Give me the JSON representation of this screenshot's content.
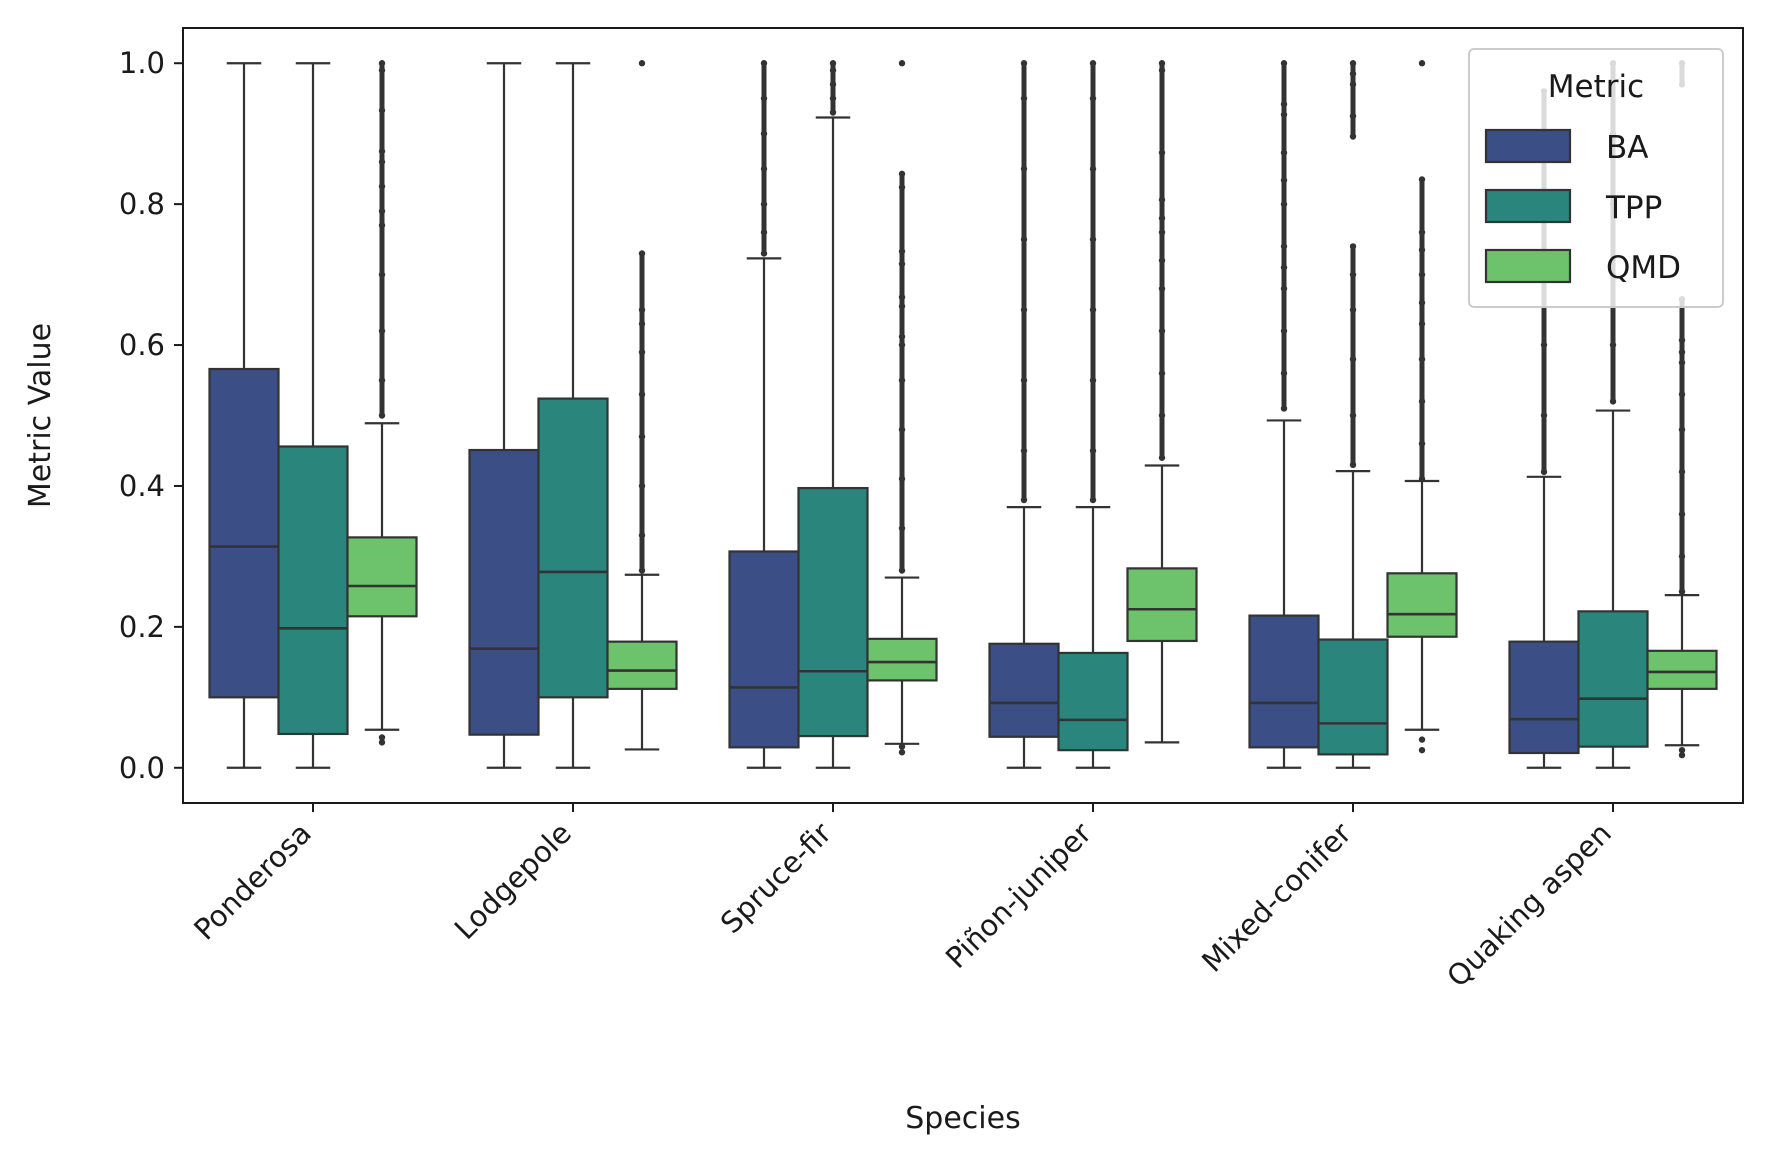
{
  "chart_data": {
    "type": "box",
    "xlabel": "Species",
    "ylabel": "Metric Value",
    "ylim": [
      -0.05,
      1.05
    ],
    "yticks": [
      "0.0",
      "0.2",
      "0.4",
      "0.6",
      "0.8",
      "1.0"
    ],
    "categories": [
      "Ponderosa",
      "Lodgepole",
      "Spruce-fir",
      "Piñon-juniper",
      "Mixed-conifer",
      "Quaking aspen"
    ],
    "grid": false,
    "legend": {
      "title": "Metric",
      "position": "top-right"
    },
    "series": [
      {
        "name": "BA",
        "color": "#3b4f86",
        "boxes": [
          {
            "whisker_low": 0.0,
            "q1": 0.1,
            "median": 0.314,
            "q3": 0.566,
            "whisker_high": 1.0,
            "outliers": []
          },
          {
            "whisker_low": 0.0,
            "q1": 0.047,
            "median": 0.169,
            "q3": 0.451,
            "whisker_high": 1.0,
            "outliers": []
          },
          {
            "whisker_low": 0.0,
            "q1": 0.029,
            "median": 0.114,
            "q3": 0.307,
            "whisker_high": 0.723,
            "outliers": [
              0.73,
              0.76,
              0.8,
              0.85,
              0.9,
              0.95,
              1.0
            ]
          },
          {
            "whisker_low": 0.0,
            "q1": 0.044,
            "median": 0.092,
            "q3": 0.176,
            "whisker_high": 0.37,
            "outliers": [
              0.38,
              0.45,
              0.55,
              0.65,
              0.75,
              0.85,
              0.95,
              1.0
            ]
          },
          {
            "whisker_low": 0.0,
            "q1": 0.029,
            "median": 0.092,
            "q3": 0.216,
            "whisker_high": 0.493,
            "outliers": [
              0.51,
              0.56,
              0.62,
              0.68,
              0.71,
              0.74,
              0.8,
              0.834,
              0.873,
              0.927,
              0.942,
              1.0
            ]
          },
          {
            "whisker_low": 0.0,
            "q1": 0.021,
            "median": 0.069,
            "q3": 0.179,
            "whisker_high": 0.413,
            "outliers": [
              0.42,
              0.5,
              0.6,
              0.7,
              0.8,
              0.9,
              0.96
            ]
          }
        ]
      },
      {
        "name": "TPP",
        "color": "#2a857d",
        "boxes": [
          {
            "whisker_low": 0.0,
            "q1": 0.048,
            "median": 0.198,
            "q3": 0.456,
            "whisker_high": 1.0,
            "outliers": []
          },
          {
            "whisker_low": 0.0,
            "q1": 0.1,
            "median": 0.278,
            "q3": 0.524,
            "whisker_high": 1.0,
            "outliers": []
          },
          {
            "whisker_low": 0.0,
            "q1": 0.045,
            "median": 0.137,
            "q3": 0.397,
            "whisker_high": 0.923,
            "outliers": [
              0.93,
              0.95,
              0.97,
              0.99,
              1.0
            ]
          },
          {
            "whisker_low": 0.0,
            "q1": 0.025,
            "median": 0.068,
            "q3": 0.163,
            "whisker_high": 0.37,
            "outliers": [
              0.38,
              0.45,
              0.55,
              0.65,
              0.75,
              0.85,
              0.95,
              1.0
            ]
          },
          {
            "whisker_low": 0.0,
            "q1": 0.019,
            "median": 0.063,
            "q3": 0.182,
            "whisker_high": 0.421,
            "outliers": [
              0.43,
              0.5,
              0.58,
              0.65,
              0.7,
              0.74,
              0.896,
              0.925,
              0.97,
              0.985,
              1.0
            ]
          },
          {
            "whisker_low": 0.0,
            "q1": 0.03,
            "median": 0.098,
            "q3": 0.222,
            "whisker_high": 0.507,
            "outliers": [
              0.52,
              0.6,
              0.7,
              0.8,
              0.9,
              1.0
            ]
          }
        ]
      },
      {
        "name": "QMD",
        "color": "#6cc36b",
        "boxes": [
          {
            "whisker_low": 0.054,
            "q1": 0.215,
            "median": 0.258,
            "q3": 0.327,
            "whisker_high": 0.489,
            "outliers": [
              0.036,
              0.043,
              0.5,
              0.55,
              0.62,
              0.7,
              0.77,
              0.79,
              0.825,
              0.86,
              0.875,
              0.933,
              0.99,
              1.0
            ]
          },
          {
            "whisker_low": 0.026,
            "q1": 0.112,
            "median": 0.138,
            "q3": 0.179,
            "whisker_high": 0.274,
            "outliers": [
              0.28,
              0.33,
              0.4,
              0.47,
              0.53,
              0.59,
              0.63,
              0.65,
              0.73,
              1.0
            ]
          },
          {
            "whisker_low": 0.034,
            "q1": 0.124,
            "median": 0.15,
            "q3": 0.183,
            "whisker_high": 0.27,
            "outliers": [
              0.022,
              0.03,
              0.28,
              0.34,
              0.41,
              0.48,
              0.55,
              0.6,
              0.612,
              0.655,
              0.668,
              0.715,
              0.733,
              0.824,
              0.843,
              1.0
            ]
          },
          {
            "whisker_low": 0.036,
            "q1": 0.18,
            "median": 0.225,
            "q3": 0.283,
            "whisker_high": 0.429,
            "outliers": [
              0.44,
              0.5,
              0.56,
              0.62,
              0.68,
              0.72,
              0.76,
              0.78,
              0.806,
              0.873,
              0.99,
              1.0
            ]
          },
          {
            "whisker_low": 0.054,
            "q1": 0.186,
            "median": 0.218,
            "q3": 0.276,
            "whisker_high": 0.407,
            "outliers": [
              0.025,
              0.04,
              0.41,
              0.46,
              0.52,
              0.58,
              0.63,
              0.66,
              0.7,
              0.735,
              0.76,
              0.835,
              1.0
            ]
          },
          {
            "whisker_low": 0.032,
            "q1": 0.112,
            "median": 0.136,
            "q3": 0.166,
            "whisker_high": 0.245,
            "outliers": [
              0.018,
              0.025,
              0.25,
              0.3,
              0.36,
              0.42,
              0.48,
              0.53,
              0.575,
              0.59,
              0.607,
              0.665,
              0.97,
              1.0
            ]
          }
        ]
      }
    ]
  }
}
